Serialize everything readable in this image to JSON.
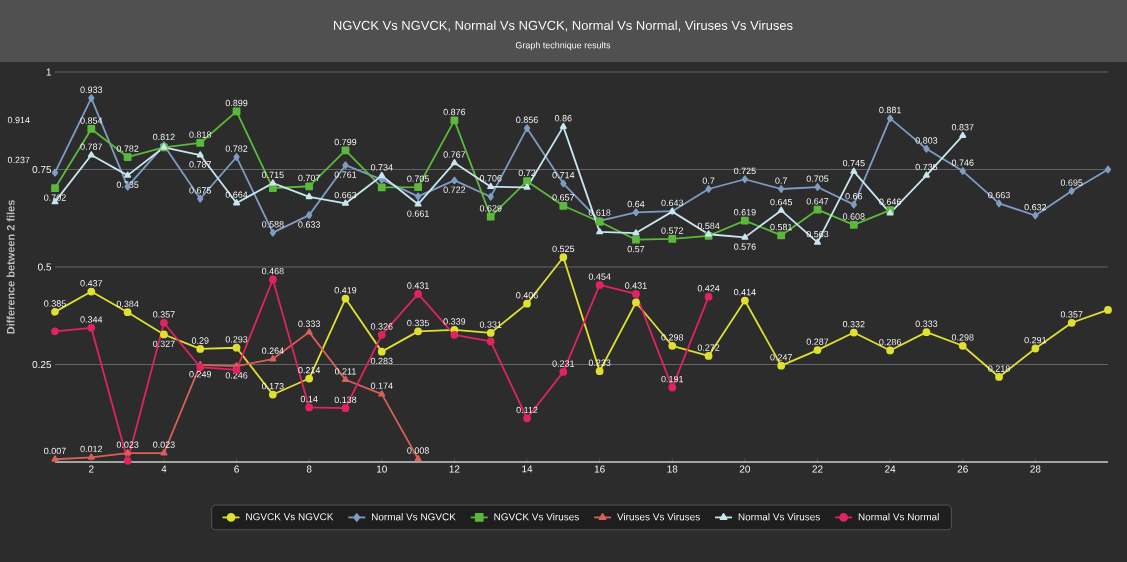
{
  "chart_data": {
    "type": "line",
    "title": "NGVCK Vs NGVCK, Normal Vs NGVCK, Normal Vs Normal, Viruses Vs Viruses",
    "subtitle": "Graph technique results",
    "ylabel": "Difference between 2 files",
    "x": [
      1,
      2,
      3,
      4,
      5,
      6,
      7,
      8,
      9,
      10,
      11,
      12,
      13,
      14,
      15,
      16,
      17,
      18,
      19,
      20,
      21,
      22,
      23,
      24,
      25,
      26,
      27,
      28,
      29,
      30
    ],
    "xlim": [
      1,
      30
    ],
    "xticks": [
      2,
      4,
      6,
      8,
      10,
      12,
      14,
      16,
      18,
      20,
      22,
      24,
      26,
      28
    ],
    "ylim": [
      0,
      1
    ],
    "yticks": [
      0.25,
      0.5,
      0.75,
      1
    ],
    "grid": "y",
    "legend": "bottom",
    "annotations": [
      "0.914",
      "0.237"
    ],
    "series": [
      {
        "name": "NGVCK Vs NGVCK",
        "color": "#e0e030",
        "marker": "circle",
        "values": [
          0.385,
          0.437,
          0.384,
          0.327,
          0.29,
          0.293,
          0.173,
          0.214,
          0.419,
          0.283,
          0.335,
          0.339,
          0.331,
          0.406,
          0.525,
          0.233,
          0.409,
          0.298,
          0.272,
          0.414,
          0.247,
          0.287,
          0.332,
          0.286,
          0.333,
          0.298,
          0.218,
          0.291,
          0.357,
          0.39
        ],
        "value_labels": [
          "0.385",
          "0.437",
          "0.384",
          "0.327",
          "0.29",
          "0.293",
          "0.173",
          "0.214",
          "0.419",
          "0.283",
          "0.335",
          "0.339",
          "0.331",
          "0.406",
          "0.525",
          "0.233",
          null,
          "0.298",
          "0.272",
          "0.414",
          "0.247",
          "0.287",
          "0.332",
          "0.286",
          "0.333",
          "0.298",
          "0.218",
          "0.291",
          "0.357",
          null
        ]
      },
      {
        "name": "Normal Vs NGVCK",
        "color": "#7f9cc4",
        "marker": "diamond",
        "values": [
          0.742,
          0.933,
          0.706,
          0.812,
          0.675,
          0.782,
          0.588,
          0.633,
          0.761,
          0.724,
          0.681,
          0.722,
          0.68,
          0.856,
          0.714,
          0.618,
          0.64,
          0.643,
          0.7,
          0.725,
          0.7,
          0.705,
          0.66,
          0.881,
          0.803,
          0.746,
          0.663,
          0.632,
          0.695,
          0.75
        ],
        "value_labels": [
          null,
          "0.933",
          null,
          "0.812",
          "0.675",
          "0.782",
          "0.588",
          "0.633",
          "0.761",
          null,
          null,
          "0.722",
          null,
          "0.856",
          "0.714",
          "0.618",
          "0.64",
          "0.643",
          "0.7",
          "0.725",
          "0.7",
          "0.705",
          "0.66",
          "0.881",
          "0.803",
          "0.746",
          "0.663",
          "0.632",
          "0.695",
          null
        ]
      },
      {
        "name": "NGVCK Vs Viruses",
        "color": "#5cb83c",
        "marker": "square",
        "values": [
          0.702,
          0.854,
          0.782,
          0.807,
          0.818,
          0.899,
          0.702,
          0.707,
          0.799,
          0.704,
          0.705,
          0.876,
          0.629,
          0.72,
          0.657,
          0.616,
          0.57,
          0.572,
          0.58,
          0.619,
          0.581,
          0.647,
          0.608,
          0.646,
          null,
          null,
          null,
          null,
          null,
          null
        ],
        "value_labels": [
          "0.702",
          "0.854",
          "0.782",
          null,
          "0.818",
          "0.899",
          null,
          "0.707",
          "0.799",
          null,
          "0.705",
          "0.876",
          "0.629",
          "0.72",
          "0.657",
          null,
          "0.57",
          "0.572",
          null,
          "0.619",
          "0.581",
          "0.647",
          "0.608",
          "0.646",
          null,
          null,
          null,
          null,
          null,
          null
        ]
      },
      {
        "name": "Viruses Vs Viruses",
        "color": "#d9605a",
        "marker": "triangle",
        "values": [
          0.007,
          0.012,
          0.023,
          0.023,
          0.249,
          0.246,
          0.264,
          0.333,
          0.211,
          0.174,
          0.008,
          null,
          null,
          null,
          null,
          null,
          null,
          null,
          null,
          null,
          null,
          null,
          null,
          null,
          null,
          null,
          null,
          null,
          null,
          null
        ],
        "value_labels": [
          "0.007",
          "0.012",
          "0.023",
          "0.023",
          "0.249",
          "0.246",
          "0.264",
          "0.333",
          "0.211",
          "0.174",
          "0.008",
          null,
          null,
          null,
          null,
          null,
          null,
          null,
          null,
          null,
          null,
          null,
          null,
          null,
          null,
          null,
          null,
          null,
          null,
          null
        ]
      },
      {
        "name": "Normal Vs Viruses",
        "color": "#c8e6ef",
        "marker": "triangle",
        "values": [
          0.667,
          0.787,
          0.735,
          0.807,
          0.787,
          0.664,
          0.715,
          0.68,
          0.663,
          0.734,
          0.661,
          0.767,
          0.706,
          0.704,
          0.86,
          0.59,
          0.587,
          0.642,
          0.584,
          0.576,
          0.645,
          0.563,
          0.745,
          0.638,
          0.735,
          0.837,
          null,
          null,
          null,
          null
        ],
        "value_labels": [
          null,
          "0.787",
          "0.735",
          null,
          "0.787",
          "0.664",
          "0.715",
          null,
          "0.663",
          "0.734",
          "0.661",
          "0.767",
          "0.706",
          null,
          "0.86",
          null,
          null,
          null,
          "0.584",
          "0.576",
          "0.645",
          "0.563",
          "0.745",
          null,
          "0.735",
          "0.837",
          null,
          null,
          null,
          null
        ]
      },
      {
        "name": "Normal Vs Normal",
        "color": "#e0245e",
        "marker": "circle",
        "values": [
          0.335,
          0.344,
          0.003,
          0.357,
          0.243,
          0.236,
          0.468,
          0.14,
          0.138,
          0.326,
          0.431,
          0.326,
          0.309,
          0.112,
          0.231,
          0.454,
          0.431,
          0.191,
          0.424,
          null,
          null,
          null,
          null,
          null,
          null,
          null,
          null,
          null,
          null,
          null
        ],
        "value_labels": [
          null,
          "0.344",
          null,
          "0.357",
          null,
          null,
          "0.468",
          "0.14",
          "0.138",
          "0.326",
          "0.431",
          null,
          null,
          "0.112",
          "0.231",
          "0.454",
          "0.431",
          "0.191",
          "0.424",
          null,
          null,
          null,
          null,
          null,
          null,
          null,
          null,
          null,
          null,
          null
        ]
      }
    ]
  }
}
